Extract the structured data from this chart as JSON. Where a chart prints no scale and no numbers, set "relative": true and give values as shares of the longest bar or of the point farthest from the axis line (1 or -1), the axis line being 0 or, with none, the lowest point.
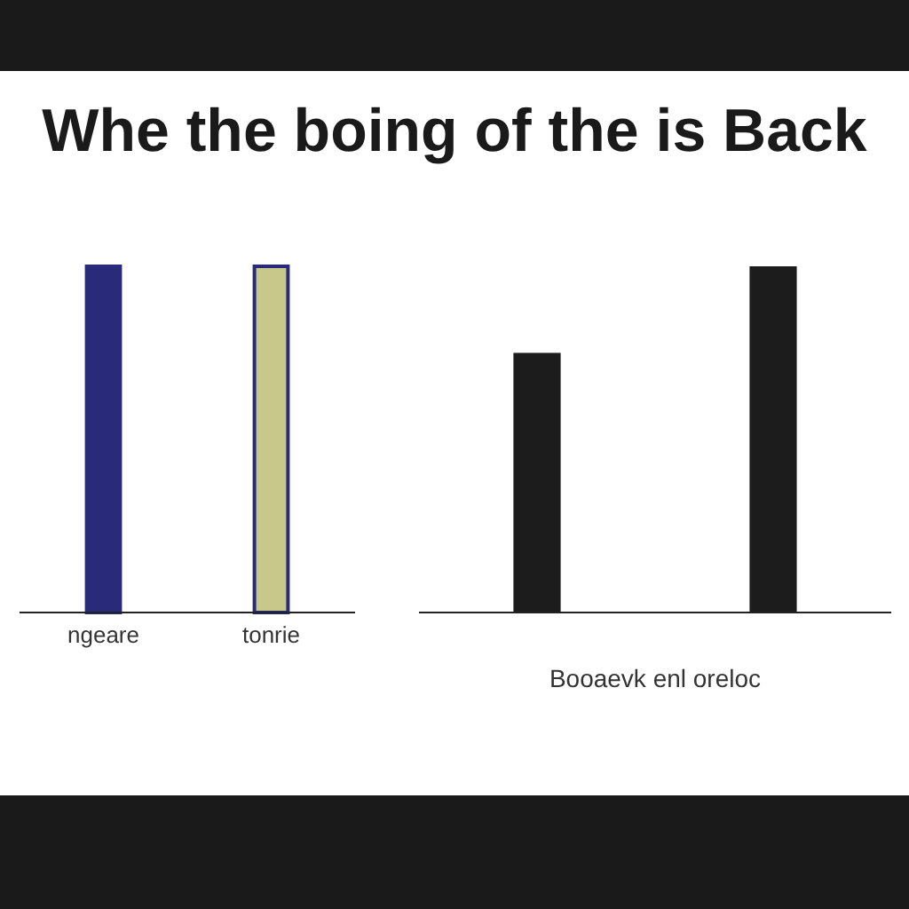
{
  "chart_data": [
    {
      "type": "bar",
      "title": "Whe the boing of the is Back",
      "categories": [
        "ngeare",
        "tonrie"
      ],
      "relative": true,
      "colors": [
        "#2a2a7a",
        "#c8c88a"
      ],
      "values": [
        1,
        1
      ]
    },
    {
      "type": "bar",
      "xlabel": "Booaevk enl oreloc",
      "categories": [
        null,
        null
      ],
      "relative": true,
      "color": "#1c1c1c",
      "values": [
        0.75,
        1
      ]
    }
  ]
}
